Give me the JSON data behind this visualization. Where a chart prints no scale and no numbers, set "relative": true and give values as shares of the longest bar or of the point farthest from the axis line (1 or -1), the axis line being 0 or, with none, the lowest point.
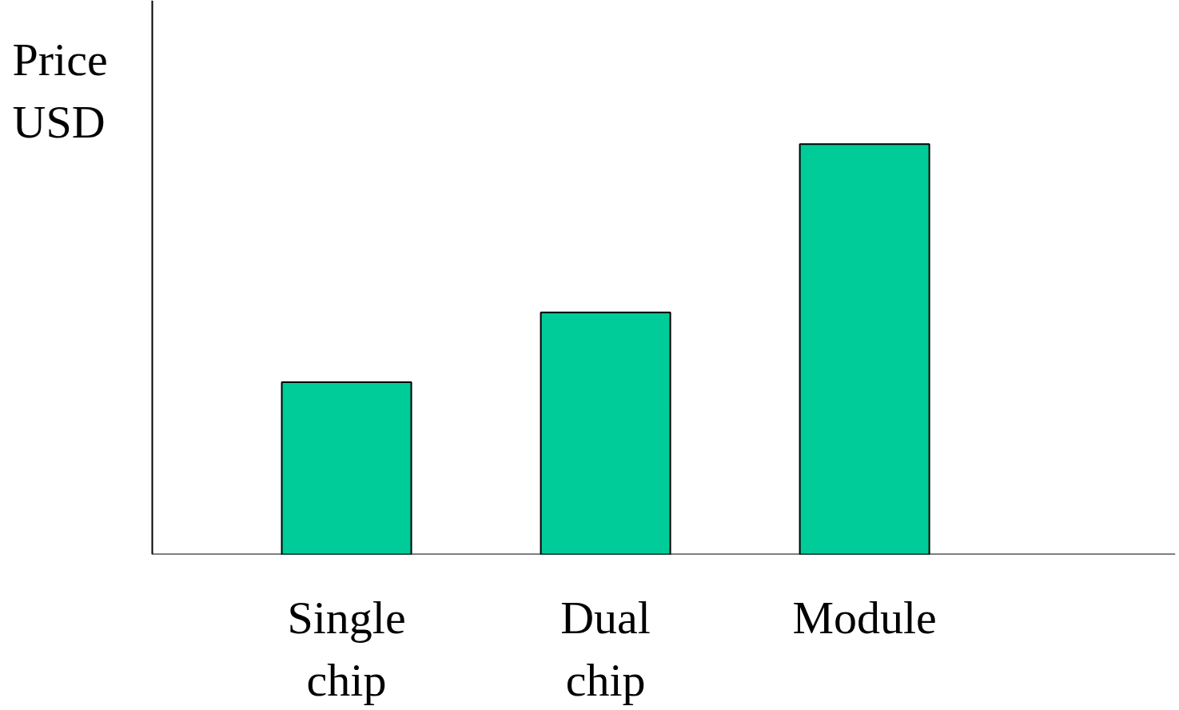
{
  "chart_data": {
    "type": "bar",
    "ylabel": "Price\nUSD",
    "categories": [
      "Single\nchip",
      "Dual\nchip",
      "Module"
    ],
    "values": [
      0.42,
      0.59,
      1
    ],
    "color": "#00cc99",
    "relative": true,
    "grid": false
  }
}
